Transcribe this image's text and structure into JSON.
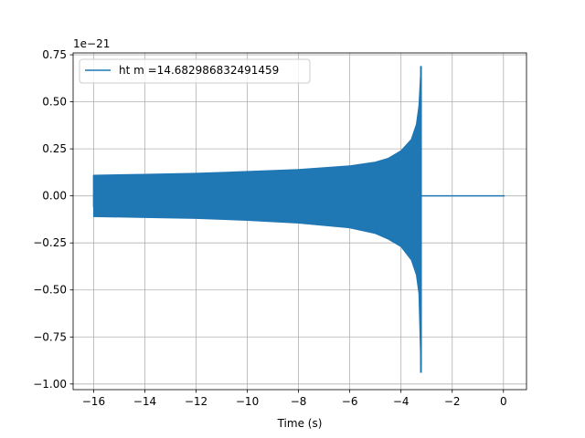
{
  "chart_data": {
    "type": "line",
    "title": "",
    "xlabel": "Time (s)",
    "ylabel": "",
    "y_offset_label": "1e−21",
    "xlim": [
      -16.8,
      0.9
    ],
    "ylim": [
      -1.03,
      0.76
    ],
    "x_ticks": [
      -16,
      -14,
      -12,
      -10,
      -8,
      -6,
      -4,
      -2,
      0
    ],
    "x_tick_labels": [
      "−16",
      "−14",
      "−12",
      "−10",
      "−8",
      "−6",
      "−4",
      "−2",
      "0"
    ],
    "y_ticks": [
      0.75,
      0.5,
      0.25,
      0.0,
      -0.25,
      -0.5,
      -0.75,
      -1.0
    ],
    "y_tick_labels": [
      "0.75",
      "0.50",
      "0.25",
      "0.00",
      "−0.25",
      "−0.50",
      "−0.75",
      "−1.00"
    ],
    "grid": true,
    "legend_position": "top-left",
    "series": [
      {
        "name": "ht m =14.682986832491459",
        "color": "#1f77b4",
        "envelope_upper": [
          [
            -16.0,
            0.11
          ],
          [
            -14.0,
            0.115
          ],
          [
            -12.0,
            0.12
          ],
          [
            -10.0,
            0.13
          ],
          [
            -8.0,
            0.14
          ],
          [
            -6.0,
            0.16
          ],
          [
            -5.0,
            0.18
          ],
          [
            -4.5,
            0.2
          ],
          [
            -4.0,
            0.24
          ],
          [
            -3.6,
            0.3
          ],
          [
            -3.4,
            0.38
          ],
          [
            -3.3,
            0.48
          ],
          [
            -3.22,
            0.69
          ]
        ],
        "envelope_lower": [
          [
            -16.0,
            -0.11
          ],
          [
            -14.0,
            -0.115
          ],
          [
            -12.0,
            -0.12
          ],
          [
            -10.0,
            -0.13
          ],
          [
            -8.0,
            -0.145
          ],
          [
            -6.0,
            -0.17
          ],
          [
            -5.0,
            -0.2
          ],
          [
            -4.5,
            -0.23
          ],
          [
            -4.0,
            -0.27
          ],
          [
            -3.6,
            -0.34
          ],
          [
            -3.4,
            -0.42
          ],
          [
            -3.3,
            -0.52
          ],
          [
            -3.22,
            -0.94
          ]
        ],
        "merger_time": -3.22,
        "post_merger_value": 0.0,
        "end_time": 0.05
      }
    ]
  }
}
